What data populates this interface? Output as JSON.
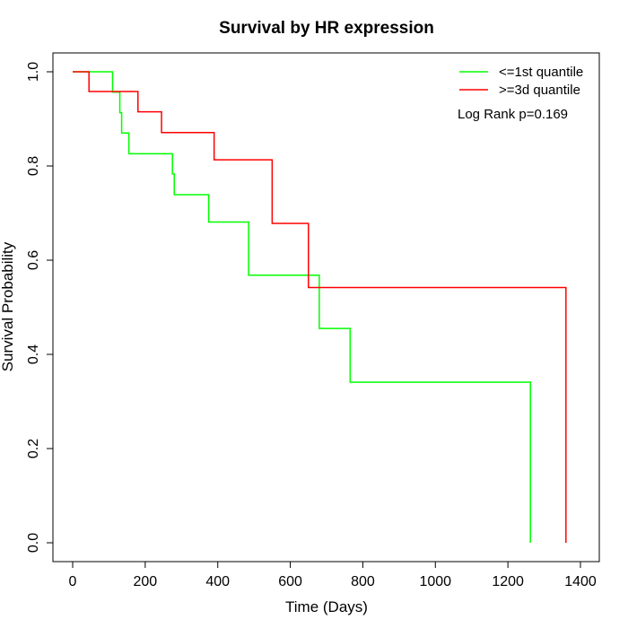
{
  "chart_data": {
    "type": "line",
    "title": "Survival by HR expression",
    "xlabel": "Time (Days)",
    "ylabel": "Survival Probability",
    "xlim": [
      0,
      1400
    ],
    "ylim": [
      0,
      1.0
    ],
    "x_ticks": [
      "0",
      "200",
      "400",
      "600",
      "800",
      "1000",
      "1200",
      "1400"
    ],
    "y_ticks": [
      "0.0",
      "0.2",
      "0.4",
      "0.6",
      "0.8",
      "1.0"
    ],
    "grid": false,
    "legend_position": "top-right",
    "annotation": "Log Rank p=0.169",
    "series": [
      {
        "name": "<=1st quantile",
        "color": "#00ff00",
        "step": true,
        "x": [
          0,
          110,
          130,
          135,
          155,
          275,
          280,
          375,
          485,
          680,
          765,
          1262,
          1262
        ],
        "y": [
          1.0,
          0.957,
          0.913,
          0.87,
          0.826,
          0.783,
          0.739,
          0.681,
          0.568,
          0.455,
          0.341,
          0.341,
          0.0
        ]
      },
      {
        "name": ">=3d quantile",
        "color": "#ff0000",
        "step": true,
        "x": [
          0,
          45,
          180,
          245,
          390,
          550,
          650,
          1360,
          1360
        ],
        "y": [
          1.0,
          0.958,
          0.915,
          0.871,
          0.813,
          0.678,
          0.542,
          0.542,
          0.0
        ]
      }
    ]
  }
}
